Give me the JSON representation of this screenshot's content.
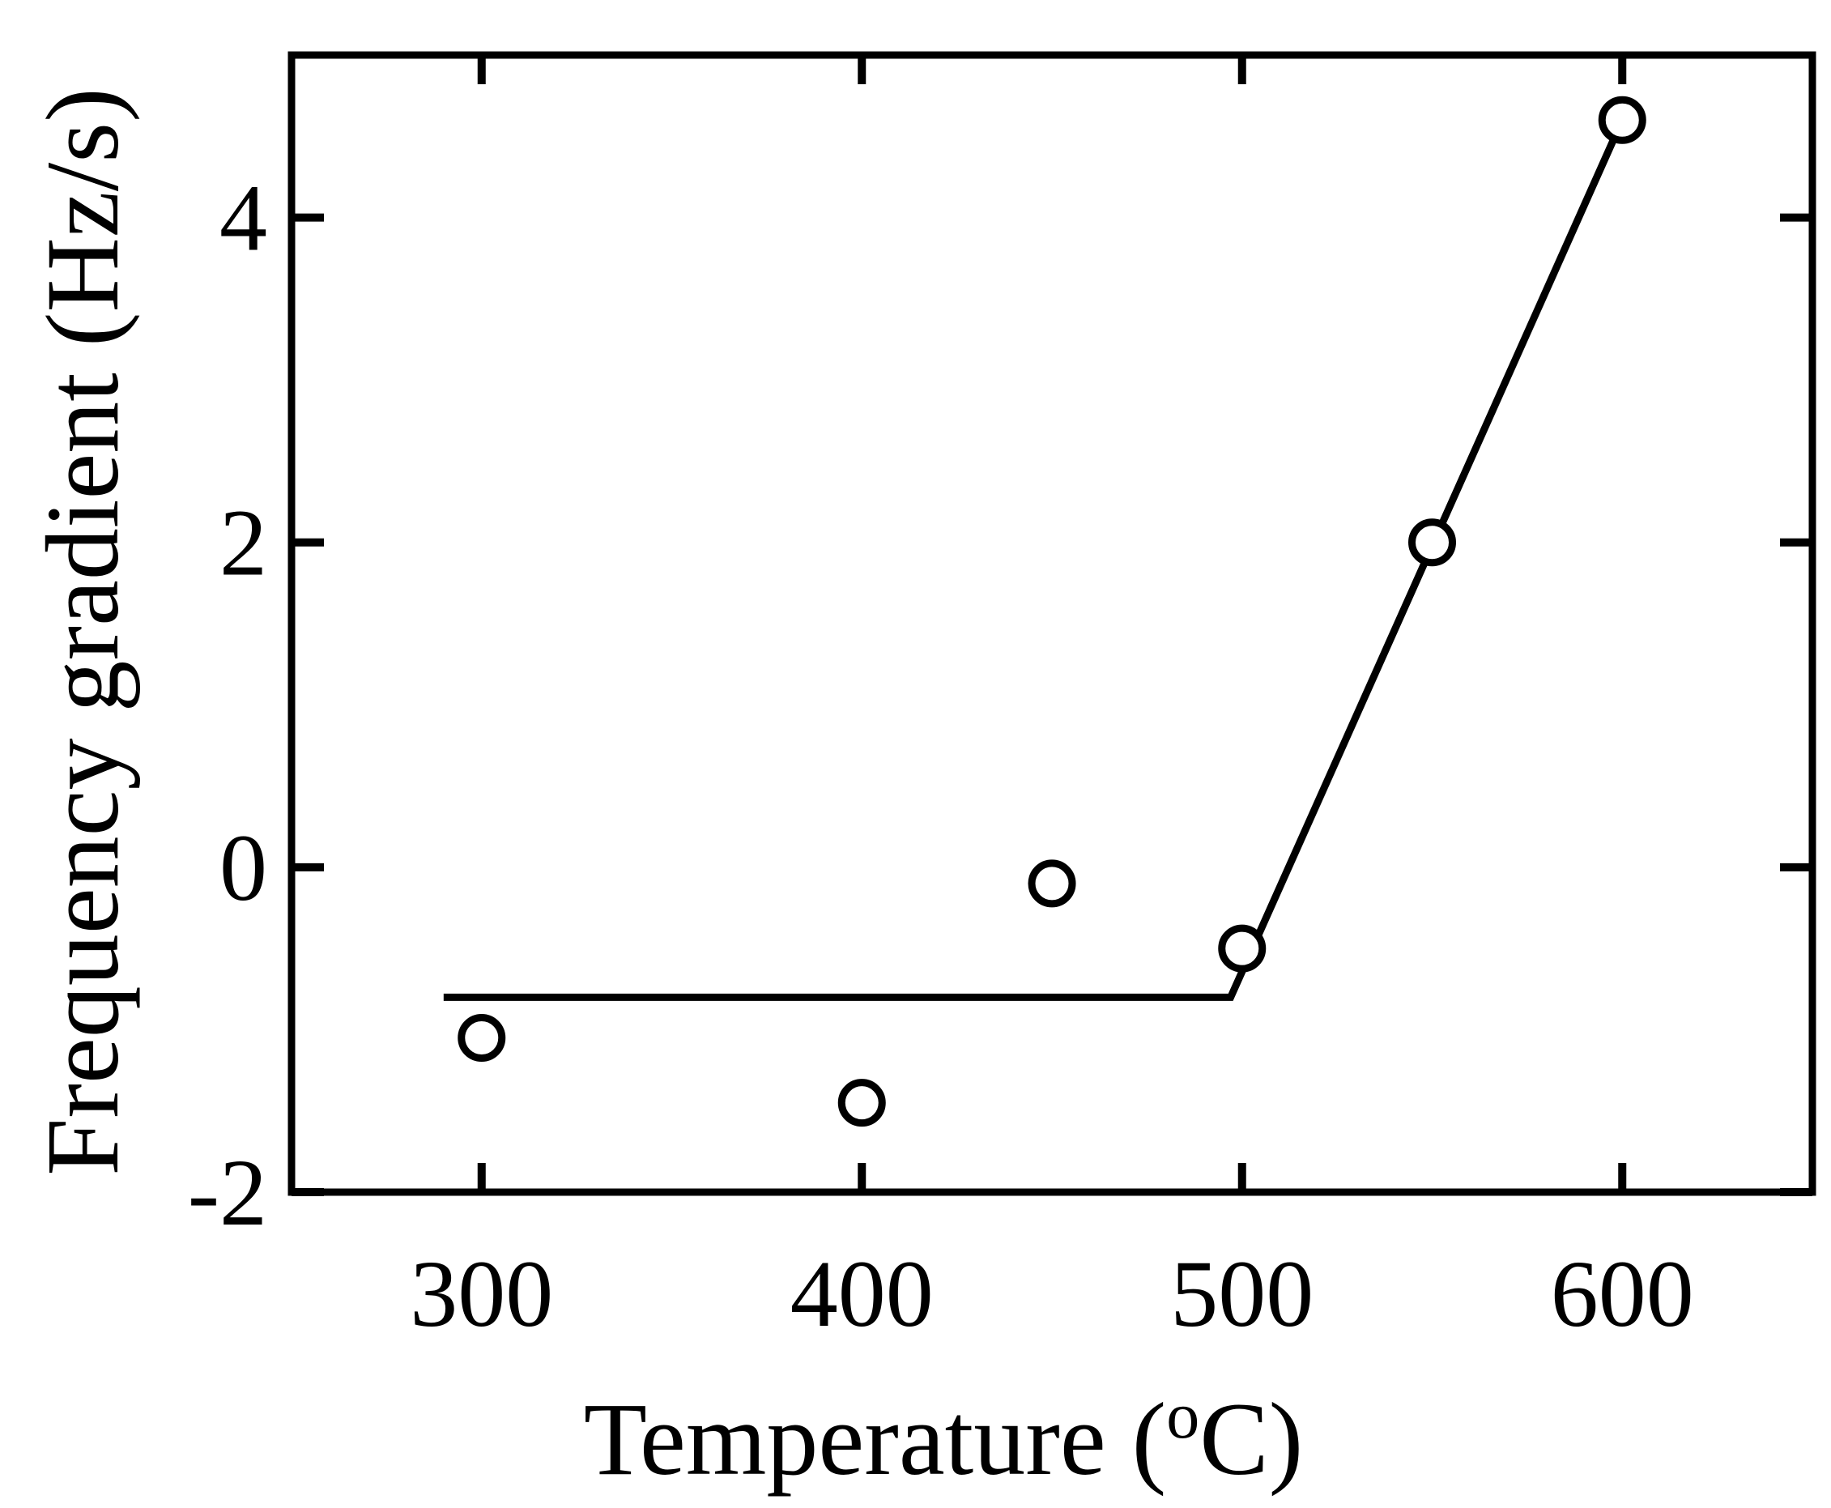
{
  "chart_data": {
    "type": "scatter",
    "xlabel": "Temperature (",
    "xlabel_unit_sup": "o",
    "xlabel_unit": "C)",
    "ylabel": "Frequency gradient  (Hz/s)",
    "xlim": [
      250,
      650
    ],
    "ylim": [
      -2,
      5
    ],
    "x_ticks": [
      300,
      400,
      500,
      600
    ],
    "x_tick_labels": [
      "300",
      "400",
      "500",
      "600"
    ],
    "y_ticks": [
      -2,
      0,
      2,
      4
    ],
    "y_tick_labels": [
      "-2",
      "0",
      "2",
      "4"
    ],
    "grid": false,
    "series": [
      {
        "kind": "scatter",
        "marker": "open-circle",
        "x": [
          300,
          400,
          450,
          500,
          550,
          600
        ],
        "y": [
          -1.05,
          -1.45,
          -0.1,
          -0.5,
          2.0,
          4.6
        ]
      },
      {
        "kind": "line",
        "x": [
          290,
          497,
          600
        ],
        "y": [
          -0.8,
          -0.8,
          4.6
        ]
      }
    ],
    "colors": {
      "ink": "#000000",
      "background": "#ffffff"
    }
  }
}
